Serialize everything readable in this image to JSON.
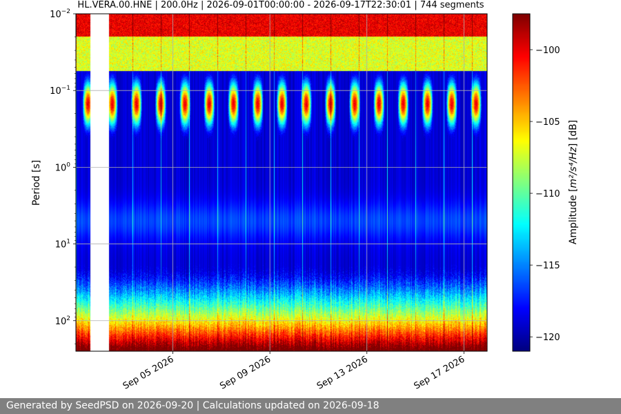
{
  "chart_data": {
    "type": "heatmap",
    "title": "HL.VERA.00.HNE | 200.0Hz | 2026-09-01T00:00:00 - 2026-09-17T22:30:01 | 744 segments",
    "ylabel": "Period [s]",
    "colorbar_label_prefix": "Amplitude [",
    "colorbar_label_math": "m²/s⁴/Hz",
    "colorbar_label_suffix": "] [dB]",
    "x_range": [
      "2026-09-01",
      "2026-09-17T23:00"
    ],
    "x_ticks": [
      "2026-09-05",
      "2026-09-09",
      "2026-09-13",
      "2026-09-17"
    ],
    "x_tick_labels": [
      "Sep 05 2026",
      "Sep 09 2026",
      "Sep 13 2026",
      "Sep 17 2026"
    ],
    "y_scale": "log",
    "y_inverted": true,
    "y_range": [
      0.01,
      250
    ],
    "y_ticks": [
      0.01,
      0.1,
      1,
      10,
      100
    ],
    "y_tick_labels": [
      {
        "base": "10",
        "exp": "−2"
      },
      {
        "base": "10",
        "exp": "−1"
      },
      {
        "base": "10",
        "exp": "0"
      },
      {
        "base": "10",
        "exp": "1"
      },
      {
        "base": "10",
        "exp": "2"
      }
    ],
    "colorbar_range": [
      -121,
      -97.5
    ],
    "colorbar_ticks": [
      -100,
      -105,
      -110,
      -115,
      -120
    ],
    "colorbar_tick_labels": [
      "−100",
      "−105",
      "−110",
      "−115",
      "−120"
    ],
    "colormap": "jet",
    "grid": true,
    "data_gap": [
      "2026-09-01T14:00",
      "2026-09-02T09:00"
    ],
    "diurnal_peak_period_s": 0.15,
    "microseism_period_s": 5,
    "lownoise_db": -121,
    "highnoise_db": -98
  },
  "footer": {
    "text": "Generated by SeedPSD on 2026-09-20 | Calculations updated on 2026-09-18"
  }
}
